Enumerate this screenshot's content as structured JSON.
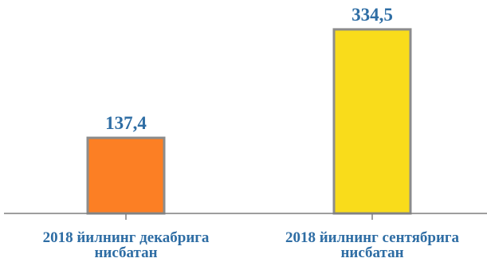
{
  "chart_data": {
    "type": "bar",
    "categories": [
      [
        "2018 йилнинг декабрига",
        "нисбатан"
      ],
      [
        "2018 йилнинг сентябрига",
        "нисбатан"
      ]
    ],
    "values": [
      137.4,
      334.5
    ],
    "value_labels": [
      "137,4",
      "334,5"
    ],
    "bar_colors": [
      "#fc7f24",
      "#f9dc1b"
    ],
    "bar_stroke": "#8c8c8c",
    "label_color": "#2e6da4",
    "ylim": [
      0,
      350
    ],
    "grid": false,
    "legend": "none"
  }
}
